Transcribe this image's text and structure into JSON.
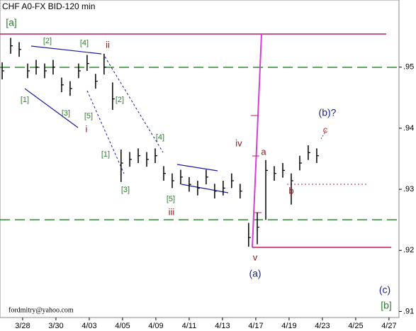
{
  "chart_data": {
    "type": "ohlc",
    "title": "CHF A0-FX BID-120 min",
    "footer": "fordmitry@yahoo.com",
    "color": "#000000",
    "x": [
      -1.23,
      -0.72,
      -0.21,
      0.3,
      0.81,
      1.32,
      1.83,
      2.34,
      2.85,
      3.36,
      3.87,
      4.38,
      4.89,
      5.4,
      5.91,
      6.43,
      6.94,
      7.45,
      7.96,
      8.47,
      8.98,
      9.49,
      10.0,
      10.51,
      11.02,
      11.53,
      12.04,
      12.55,
      13.06,
      13.57,
      14.09,
      14.6,
      15.11,
      15.62,
      16.13,
      16.64,
      17.15,
      17.66
    ],
    "high": [
      0.9508,
      0.9548,
      0.9541,
      0.9506,
      0.9512,
      0.9506,
      0.9512,
      0.9483,
      0.9477,
      0.9506,
      0.952,
      0.9489,
      0.9522,
      0.9475,
      0.9365,
      0.9361,
      0.9367,
      0.9361,
      0.9367,
      0.9338,
      0.9326,
      0.9332,
      0.932,
      0.9314,
      0.9332,
      0.9309,
      0.9314,
      0.9326,
      0.9309,
      0.9245,
      0.9262,
      0.9348,
      0.9338,
      0.9343,
      0.9326,
      0.9355,
      0.9372,
      0.9367
    ],
    "low": [
      0.948,
      0.9522,
      0.9517,
      0.9482,
      0.9488,
      0.9482,
      0.9488,
      0.9459,
      0.9453,
      0.9482,
      0.9494,
      0.9465,
      0.9488,
      0.943,
      0.9312,
      0.9337,
      0.9343,
      0.9337,
      0.9343,
      0.9314,
      0.9302,
      0.9308,
      0.9296,
      0.929,
      0.9308,
      0.9285,
      0.929,
      0.9302,
      0.9285,
      0.9206,
      0.921,
      0.925,
      0.9314,
      0.9319,
      0.9275,
      0.9331,
      0.9348,
      0.9343
    ],
    "close": [
      0.9494,
      0.9535,
      0.9529,
      0.9494,
      0.95,
      0.9494,
      0.95,
      0.9471,
      0.9465,
      0.9494,
      0.9506,
      0.9477,
      0.95,
      0.9448,
      0.9343,
      0.9349,
      0.9355,
      0.9349,
      0.9355,
      0.9326,
      0.9314,
      0.932,
      0.9308,
      0.9302,
      0.932,
      0.9297,
      0.9302,
      0.9314,
      0.9297,
      0.9221,
      0.9238,
      0.9331,
      0.9326,
      0.9331,
      0.9314,
      0.9343,
      0.936,
      0.9355
    ],
    "xlim": [
      -1.36,
      22.6
    ],
    "xticks": [
      {
        "value": 0,
        "label": "3/28"
      },
      {
        "value": 2,
        "label": "3/30"
      },
      {
        "value": 4,
        "label": "4/03"
      },
      {
        "value": 6,
        "label": "4/05"
      },
      {
        "value": 8,
        "label": "4/09"
      },
      {
        "value": 10,
        "label": "4/11"
      },
      {
        "value": 12,
        "label": "4/13"
      },
      {
        "value": 14,
        "label": "4/17"
      },
      {
        "value": 16,
        "label": "4/19"
      },
      {
        "value": 18,
        "label": "4/23"
      },
      {
        "value": 20,
        "label": "4/25"
      },
      {
        "value": 22,
        "label": "4/27"
      }
    ],
    "ylim": [
      0.909,
      0.961
    ],
    "yticks": [
      {
        "value": 0.95,
        "label": ".95"
      },
      {
        "value": 0.94,
        "label": ".94"
      },
      {
        "value": 0.93,
        "label": ".93"
      },
      {
        "value": 0.92,
        "label": ".92"
      },
      {
        "value": 0.91,
        "label": ".91"
      }
    ],
    "annotations": [
      {
        "text": "[a]",
        "color": "#2e7d32"
      },
      {
        "text": "[1]",
        "color": "#2e7d32"
      },
      {
        "text": "[2]",
        "color": "#2e7d32"
      },
      {
        "text": "[3]",
        "color": "#2e7d32"
      },
      {
        "text": "[4]",
        "color": "#2e7d32"
      },
      {
        "text": "ii",
        "color": "#8b1a1a"
      },
      {
        "text": "[5]",
        "color": "#2e7d32"
      },
      {
        "text": "i",
        "color": "#8b1a1a"
      },
      {
        "text": "[2]",
        "color": "#2e7d32"
      },
      {
        "text": "[1]",
        "color": "#2e7d32"
      },
      {
        "text": "[3]",
        "color": "#2e7d32"
      },
      {
        "text": "[4]",
        "color": "#2e7d32"
      },
      {
        "text": "[5]",
        "color": "#2e7d32"
      },
      {
        "text": "iii",
        "color": "#8b1a1a"
      },
      {
        "text": "iv",
        "color": "#8b1a1a"
      },
      {
        "text": "a",
        "color": "#8b1a1a"
      },
      {
        "text": "v",
        "color": "#8b1a1a"
      },
      {
        "text": "(a)",
        "color": "#1a237e"
      },
      {
        "text": "b",
        "color": "#8b1a1a"
      },
      {
        "text": "(b)?",
        "color": "#1a237e"
      },
      {
        "text": "c",
        "color": "#c62828"
      },
      {
        "text": "(c)",
        "color": "#1a237e"
      },
      {
        "text": "[b]",
        "color": "#2e7d32"
      }
    ]
  }
}
